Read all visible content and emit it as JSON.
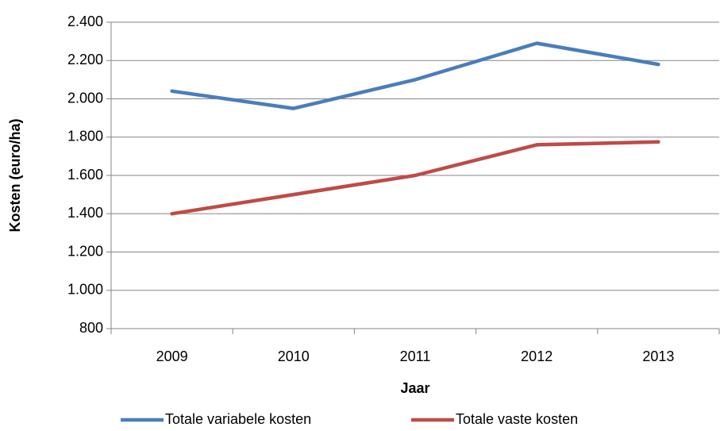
{
  "chart_data": {
    "type": "line",
    "x_label": "Jaar",
    "y_label": "Kosten (euro/ha)",
    "categories": [
      "2009",
      "2010",
      "2011",
      "2012",
      "2013"
    ],
    "series": [
      {
        "name": "Totale variabele kosten",
        "color": "#4a7ebb",
        "values": [
          2040,
          1950,
          2100,
          2290,
          2180
        ]
      },
      {
        "name": "Totale vaste kosten",
        "color": "#be4b48",
        "values": [
          1400,
          1500,
          1600,
          1760,
          1775
        ]
      }
    ],
    "ylim": [
      800,
      2400
    ],
    "yticks": [
      {
        "value": 800,
        "label": "800"
      },
      {
        "value": 1000,
        "label": "1.000"
      },
      {
        "value": 1200,
        "label": "1.200"
      },
      {
        "value": 1400,
        "label": "1.400"
      },
      {
        "value": 1600,
        "label": "1.600"
      },
      {
        "value": 1800,
        "label": "1.800"
      },
      {
        "value": 2000,
        "label": "2.000"
      },
      {
        "value": 2200,
        "label": "2.200"
      },
      {
        "value": 2400,
        "label": "2.400"
      }
    ],
    "grid": true,
    "legend": "bottom"
  }
}
